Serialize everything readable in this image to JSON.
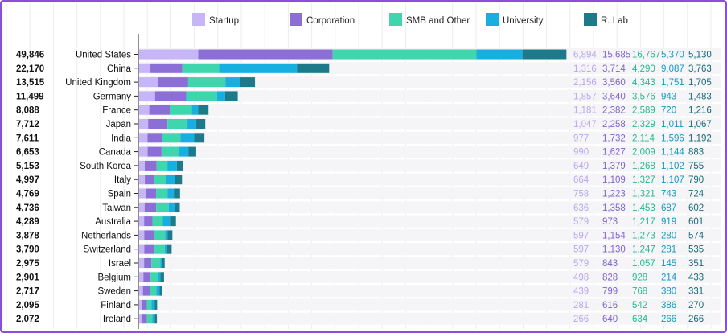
{
  "chart_data": {
    "type": "bar",
    "orientation": "horizontal",
    "stacked": true,
    "legend": "top",
    "series": [
      {
        "name": "Startup",
        "color": "#c6b5f7",
        "label_color": "#b9a8ee"
      },
      {
        "name": "Corporation",
        "color": "#8c6fd6",
        "label_color": "#8064cc"
      },
      {
        "name": "SMB and Other",
        "color": "#3fd6ad",
        "label_color": "#25b98f"
      },
      {
        "name": "University",
        "color": "#17aee0",
        "label_color": "#1499c6"
      },
      {
        "name": "R. Lab",
        "color": "#1c7a8a",
        "label_color": "#176a78"
      }
    ],
    "rows": [
      {
        "country": "United States",
        "total": "49,846",
        "values": [
          "6,894",
          "15,685",
          "16,767",
          "5,370",
          "5,130"
        ]
      },
      {
        "country": "China",
        "total": "22,170",
        "values": [
          "1,316",
          "3,714",
          "4,290",
          "9,087",
          "3,763"
        ]
      },
      {
        "country": "United Kingdom",
        "total": "13,515",
        "values": [
          "2,156",
          "3,560",
          "4,343",
          "1,751",
          "1,705"
        ]
      },
      {
        "country": "Germany",
        "total": "11,499",
        "values": [
          "1,857",
          "3,640",
          "3,576",
          "943",
          "1,483"
        ]
      },
      {
        "country": "France",
        "total": "8,088",
        "values": [
          "1,181",
          "2,382",
          "2,589",
          "720",
          "1,216"
        ]
      },
      {
        "country": "Japan",
        "total": "7,712",
        "values": [
          "1,047",
          "2,258",
          "2,329",
          "1,011",
          "1,067"
        ]
      },
      {
        "country": "India",
        "total": "7,611",
        "values": [
          "977",
          "1,732",
          "2,114",
          "1,596",
          "1,192"
        ]
      },
      {
        "country": "Canada",
        "total": "6,653",
        "values": [
          "990",
          "1,627",
          "2,009",
          "1,144",
          "883"
        ]
      },
      {
        "country": "South Korea",
        "total": "5,153",
        "values": [
          "649",
          "1,379",
          "1,268",
          "1,102",
          "755"
        ]
      },
      {
        "country": "Italy",
        "total": "4,997",
        "values": [
          "664",
          "1,109",
          "1,327",
          "1,107",
          "790"
        ]
      },
      {
        "country": "Spain",
        "total": "4,769",
        "values": [
          "758",
          "1,223",
          "1,321",
          "743",
          "724"
        ]
      },
      {
        "country": "Taiwan",
        "total": "4,736",
        "values": [
          "636",
          "1,358",
          "1,453",
          "687",
          "602"
        ]
      },
      {
        "country": "Australia",
        "total": "4,289",
        "values": [
          "579",
          "973",
          "1,217",
          "919",
          "601"
        ]
      },
      {
        "country": "Netherlands",
        "total": "3,878",
        "values": [
          "597",
          "1,154",
          "1,273",
          "280",
          "574"
        ]
      },
      {
        "country": "Switzerland",
        "total": "3,790",
        "values": [
          "597",
          "1,130",
          "1,247",
          "281",
          "535"
        ]
      },
      {
        "country": "Israel",
        "total": "2,975",
        "values": [
          "579",
          "843",
          "1,057",
          "145",
          "351"
        ]
      },
      {
        "country": "Belgium",
        "total": "2,901",
        "values": [
          "498",
          "828",
          "928",
          "214",
          "433"
        ]
      },
      {
        "country": "Sweden",
        "total": "2,717",
        "values": [
          "439",
          "799",
          "768",
          "380",
          "331"
        ]
      },
      {
        "country": "Finland",
        "total": "2,095",
        "values": [
          "281",
          "616",
          "542",
          "386",
          "270"
        ]
      },
      {
        "country": "Ireland",
        "total": "2,072",
        "values": [
          "266",
          "640",
          "634",
          "266",
          "266"
        ]
      }
    ],
    "xlim": [
      0,
      50000
    ],
    "grid": true
  }
}
